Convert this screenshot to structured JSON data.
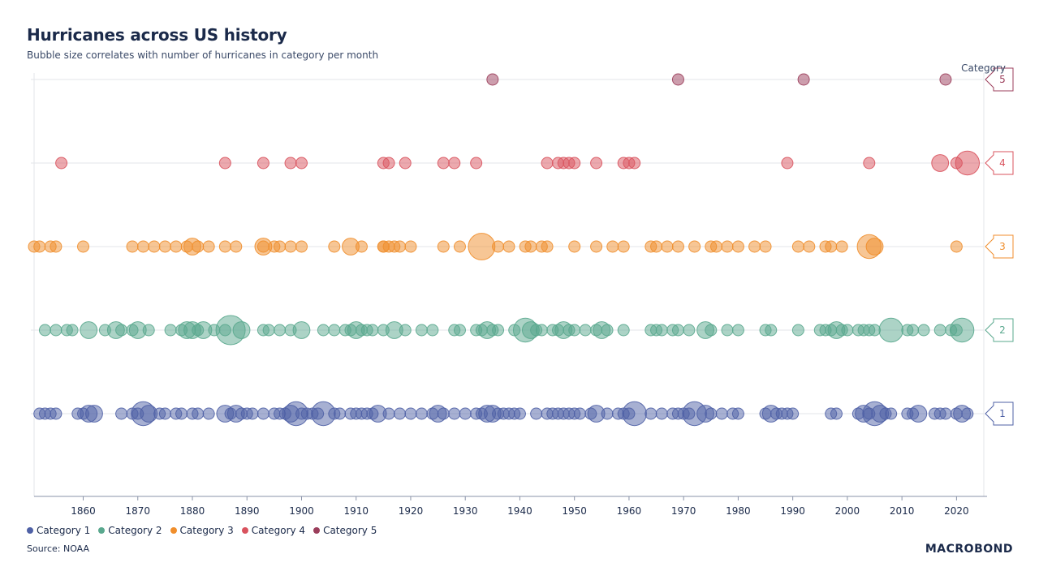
{
  "title": "Hurricanes across US history",
  "subtitle": "Bubble size correlates with number of hurricanes in category per month",
  "source": "Source: NOAA",
  "logo": "MACROBOND",
  "category_label": "Category",
  "legend": [
    {
      "label": "Category 1",
      "color": "#4f61a6"
    },
    {
      "label": "Category 2",
      "color": "#5aa88e"
    },
    {
      "label": "Category 3",
      "color": "#f08e2c"
    },
    {
      "label": "Category 4",
      "color": "#d9535e"
    },
    {
      "label": "Category 5",
      "color": "#9b3e5b"
    }
  ],
  "chart_data": {
    "type": "scatter",
    "title": "Hurricanes across US history",
    "xlabel": "",
    "ylabel": "Category",
    "xlim": [
      1851,
      2025
    ],
    "ylim": [
      0,
      5.5
    ],
    "x_ticks": [
      "1860",
      "1870",
      "1880",
      "1890",
      "1900",
      "1910",
      "1920",
      "1930",
      "1940",
      "1950",
      "1960",
      "1970",
      "1980",
      "1990",
      "2000",
      "2010",
      "2020"
    ],
    "y_ticks": [
      "1",
      "2",
      "3",
      "4",
      "5"
    ],
    "series": [
      {
        "name": "Category 1",
        "category": 1,
        "color": "#4f61a6",
        "years": [
          1852,
          1853,
          1854,
          1855,
          1859,
          1860,
          1861,
          1862,
          1867,
          1869,
          1870,
          1871,
          1872,
          1874,
          1875,
          1877,
          1878,
          1880,
          1881,
          1883,
          1886,
          1887,
          1888,
          1889,
          1890,
          1891,
          1893,
          1895,
          1896,
          1897,
          1898,
          1899,
          1900,
          1901,
          1902,
          1903,
          1904,
          1906,
          1907,
          1909,
          1910,
          1911,
          1912,
          1913,
          1914,
          1916,
          1918,
          1920,
          1922,
          1924,
          1925,
          1926,
          1928,
          1930,
          1932,
          1933,
          1934,
          1935,
          1936,
          1937,
          1938,
          1939,
          1940,
          1943,
          1945,
          1946,
          1947,
          1948,
          1949,
          1950,
          1951,
          1953,
          1954,
          1956,
          1958,
          1959,
          1960,
          1961,
          1964,
          1966,
          1968,
          1969,
          1970,
          1971,
          1972,
          1974,
          1975,
          1977,
          1979,
          1980,
          1985,
          1986,
          1987,
          1988,
          1989,
          1990,
          1997,
          1998,
          2002,
          2003,
          2004,
          2005,
          2006,
          2007,
          2008,
          2011,
          2012,
          2013,
          2016,
          2017,
          2018,
          2020,
          2021,
          2022
        ],
        "sizes": [
          1,
          1,
          1,
          1,
          1,
          1,
          2,
          2,
          1,
          1,
          1,
          4,
          2,
          1,
          1,
          1,
          1,
          1,
          1,
          1,
          2,
          1,
          2,
          1,
          1,
          1,
          1,
          1,
          1,
          1,
          2,
          4,
          1,
          1,
          1,
          1,
          4,
          1,
          1,
          1,
          1,
          1,
          1,
          1,
          2,
          1,
          1,
          1,
          1,
          1,
          2,
          1,
          1,
          1,
          1,
          1,
          2,
          2,
          1,
          1,
          1,
          1,
          1,
          1,
          1,
          1,
          1,
          1,
          1,
          1,
          1,
          1,
          2,
          1,
          1,
          1,
          1,
          4,
          1,
          1,
          1,
          1,
          1,
          1,
          4,
          2,
          1,
          1,
          1,
          1,
          1,
          2,
          1,
          1,
          1,
          1,
          1,
          1,
          1,
          2,
          1,
          4,
          2,
          1,
          1,
          1,
          1,
          2,
          1,
          1,
          1,
          1,
          2,
          1
        ]
      },
      {
        "name": "Category 2",
        "category": 2,
        "color": "#5aa88e",
        "years": [
          1853,
          1855,
          1857,
          1858,
          1861,
          1864,
          1866,
          1867,
          1869,
          1870,
          1872,
          1876,
          1878,
          1879,
          1880,
          1881,
          1882,
          1884,
          1886,
          1887,
          1889,
          1893,
          1894,
          1896,
          1898,
          1900,
          1904,
          1906,
          1908,
          1909,
          1910,
          1911,
          1912,
          1913,
          1915,
          1917,
          1919,
          1922,
          1924,
          1928,
          1929,
          1932,
          1933,
          1934,
          1935,
          1936,
          1939,
          1941,
          1942,
          1943,
          1944,
          1946,
          1947,
          1948,
          1949,
          1950,
          1952,
          1954,
          1955,
          1956,
          1959,
          1964,
          1965,
          1966,
          1968,
          1969,
          1971,
          1974,
          1975,
          1978,
          1980,
          1985,
          1986,
          1991,
          1995,
          1996,
          1997,
          1998,
          1999,
          2000,
          2002,
          2003,
          2004,
          2005,
          2008,
          2011,
          2012,
          2014,
          2017,
          2019,
          2020,
          2021
        ],
        "sizes": [
          1,
          1,
          1,
          1,
          2,
          1,
          2,
          1,
          1,
          2,
          1,
          1,
          1,
          2,
          2,
          1,
          2,
          1,
          1,
          6,
          2,
          1,
          1,
          1,
          1,
          2,
          1,
          1,
          1,
          1,
          2,
          1,
          1,
          1,
          1,
          2,
          1,
          1,
          1,
          1,
          1,
          1,
          1,
          2,
          1,
          1,
          1,
          4,
          2,
          1,
          1,
          1,
          1,
          2,
          1,
          1,
          1,
          1,
          2,
          1,
          1,
          1,
          1,
          1,
          1,
          1,
          1,
          2,
          1,
          1,
          1,
          1,
          1,
          1,
          1,
          1,
          1,
          2,
          1,
          1,
          1,
          1,
          1,
          1,
          4,
          1,
          1,
          1,
          1,
          1,
          1,
          4
        ]
      },
      {
        "name": "Category 3",
        "category": 3,
        "color": "#f08e2c",
        "years": [
          1851,
          1852,
          1854,
          1855,
          1860,
          1869,
          1871,
          1873,
          1875,
          1877,
          1879,
          1880,
          1881,
          1883,
          1886,
          1888,
          1893,
          1893,
          1895,
          1896,
          1898,
          1900,
          1906,
          1909,
          1911,
          1915,
          1915,
          1916,
          1917,
          1918,
          1920,
          1926,
          1929,
          1933,
          1936,
          1938,
          1941,
          1942,
          1944,
          1945,
          1950,
          1954,
          1957,
          1959,
          1964,
          1965,
          1967,
          1969,
          1972,
          1975,
          1976,
          1978,
          1980,
          1983,
          1985,
          1991,
          1993,
          1996,
          1997,
          1999,
          2004,
          2005,
          2020
        ],
        "sizes": [
          1,
          1,
          1,
          1,
          1,
          1,
          1,
          1,
          1,
          1,
          1,
          2,
          1,
          1,
          1,
          1,
          1,
          2,
          1,
          1,
          1,
          1,
          1,
          2,
          1,
          1,
          1,
          1,
          1,
          1,
          1,
          1,
          1,
          5,
          1,
          1,
          1,
          1,
          1,
          1,
          1,
          1,
          1,
          1,
          1,
          1,
          1,
          1,
          1,
          1,
          1,
          1,
          1,
          1,
          1,
          1,
          1,
          1,
          1,
          1,
          4,
          2,
          1
        ]
      },
      {
        "name": "Category 4",
        "category": 4,
        "color": "#d9535e",
        "years": [
          1856,
          1886,
          1893,
          1898,
          1900,
          1915,
          1916,
          1919,
          1926,
          1928,
          1932,
          1945,
          1947,
          1948,
          1949,
          1950,
          1954,
          1959,
          1960,
          1961,
          1989,
          2004,
          2017,
          2020,
          2022
        ],
        "sizes": [
          1,
          1,
          1,
          1,
          1,
          1,
          1,
          1,
          1,
          1,
          1,
          1,
          1,
          1,
          1,
          1,
          1,
          1,
          1,
          1,
          1,
          1,
          2,
          1,
          4
        ]
      },
      {
        "name": "Category 5",
        "category": 5,
        "color": "#9b3e5b",
        "years": [
          1935,
          1969,
          1992,
          2018
        ],
        "sizes": [
          1,
          1,
          1,
          1
        ]
      }
    ]
  }
}
